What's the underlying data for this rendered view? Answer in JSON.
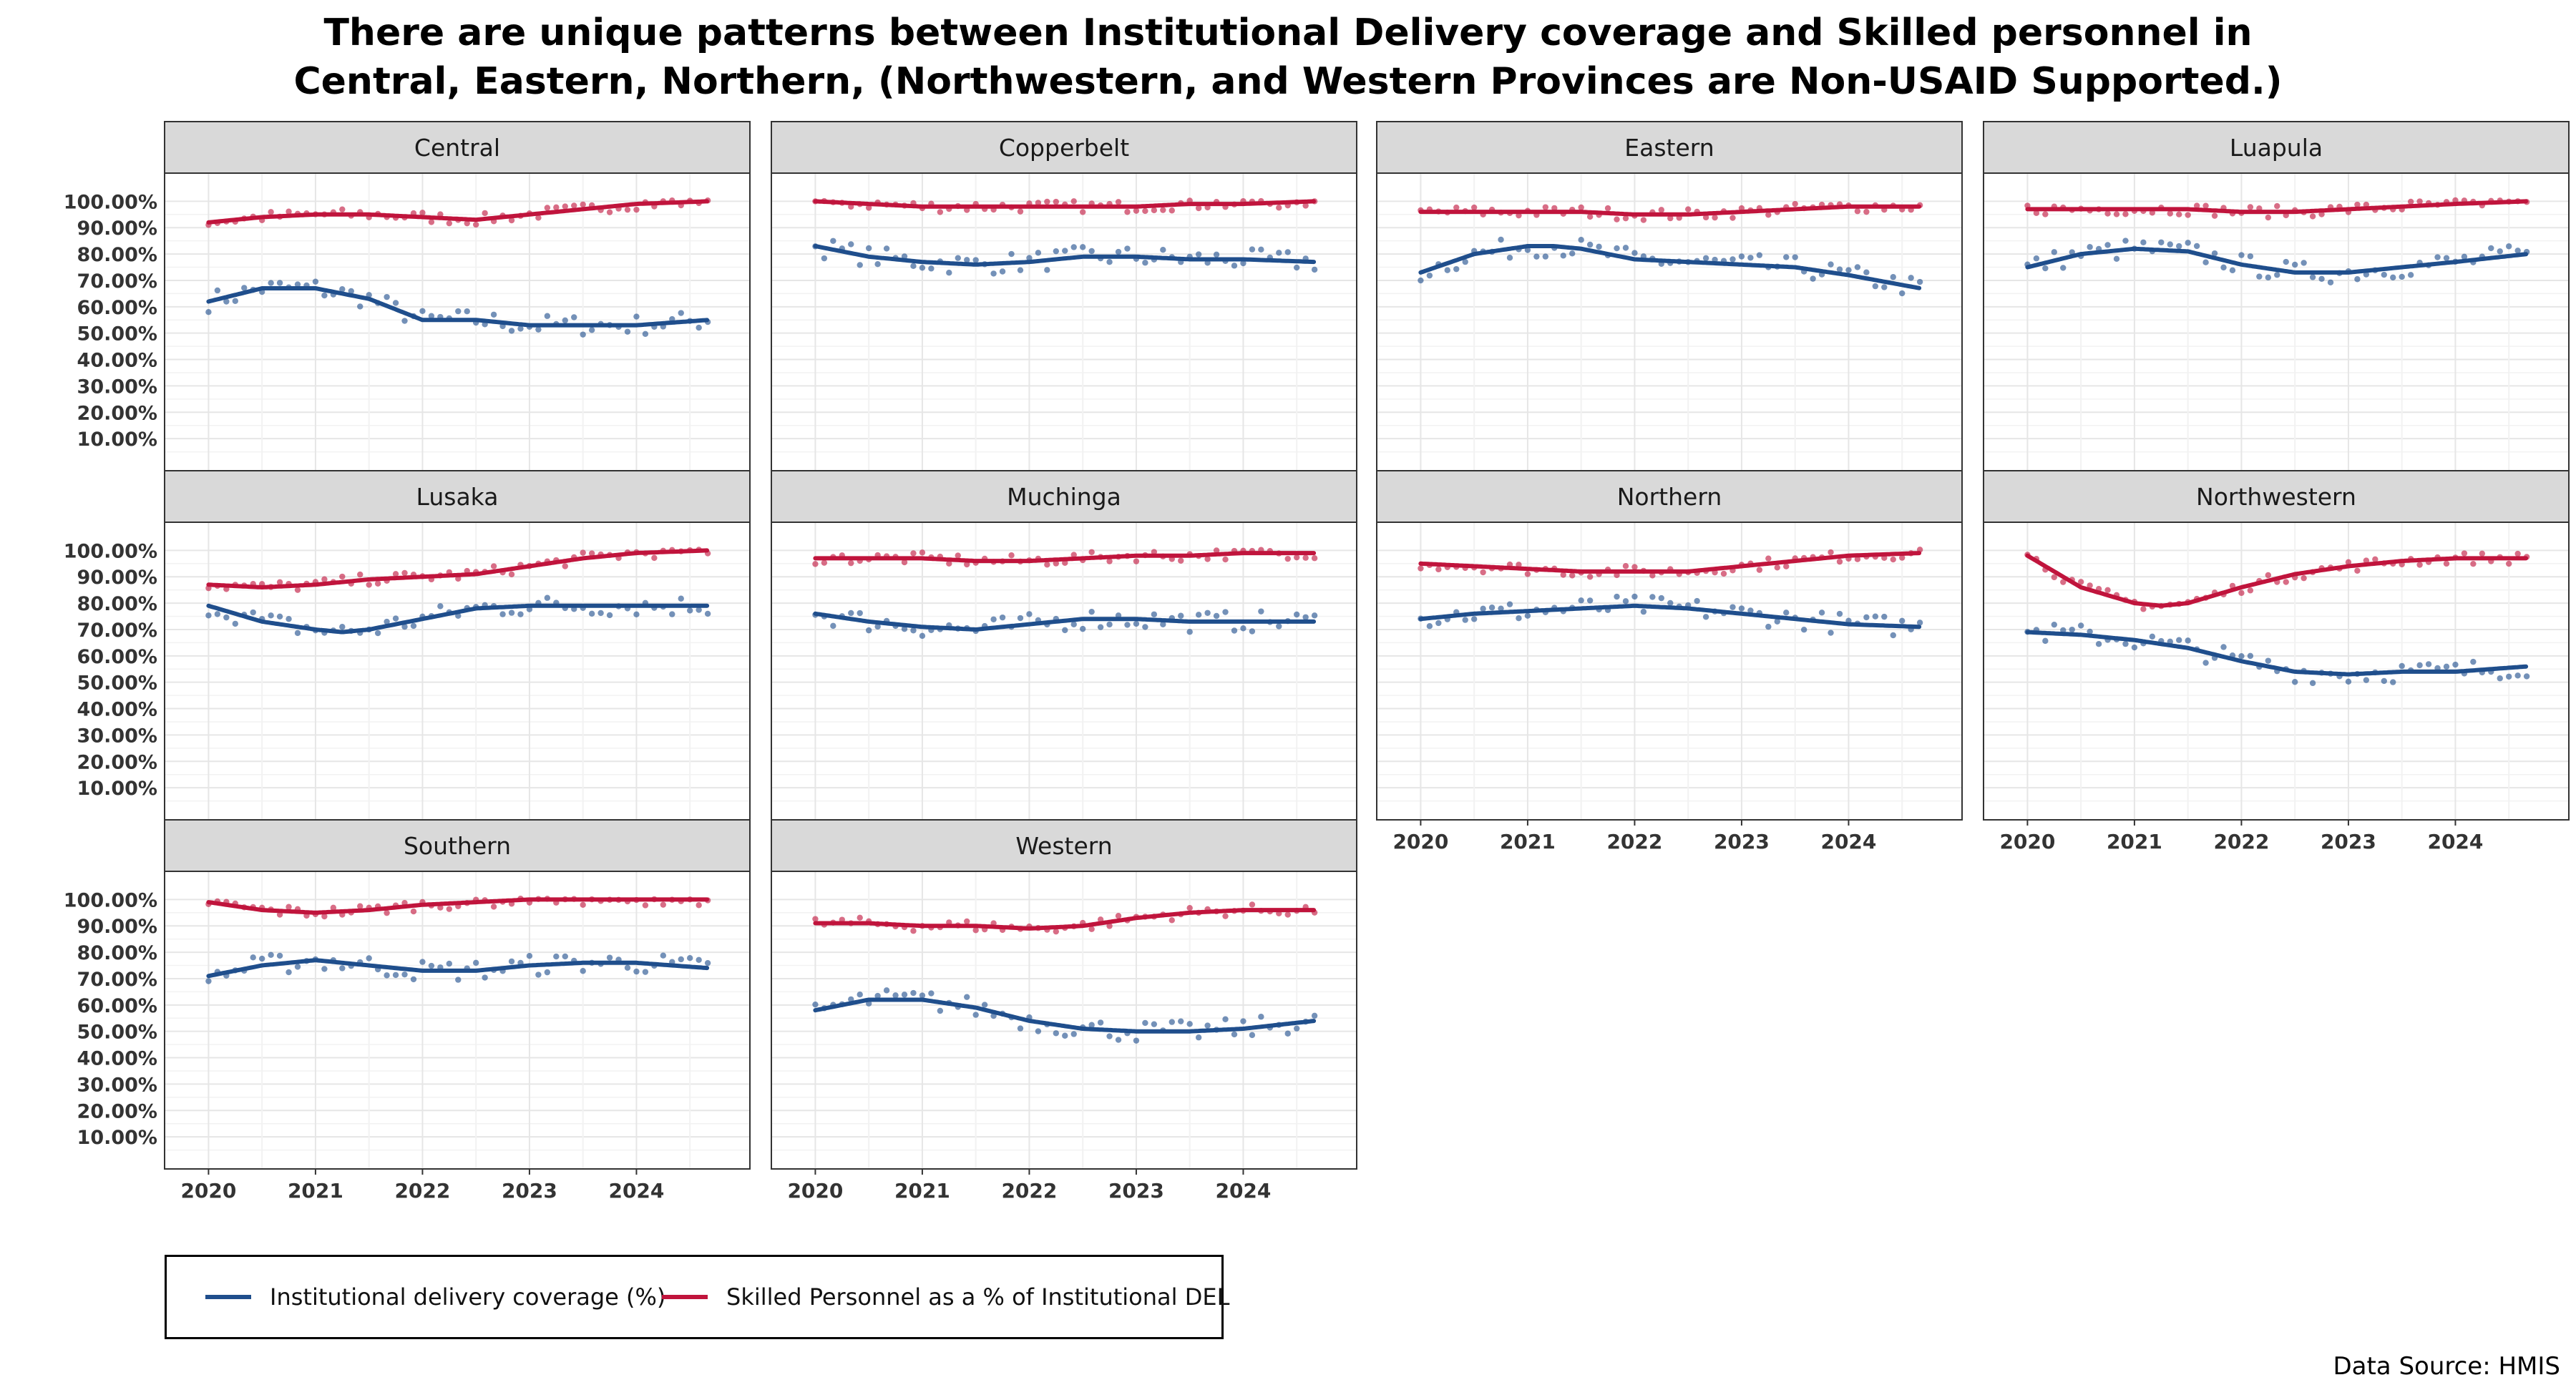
{
  "title_lines": [
    "There are unique patterns between Institutional Delivery coverage and Skilled personnel in",
    "Central, Eastern, Northern, (Northwestern, and Western Provinces are Non-USAID Supported.)"
  ],
  "source": "Data Source: HMIS",
  "colors": {
    "coverage": "#1f4e8c",
    "skilled": "#c0143c"
  },
  "legend": [
    {
      "label": "Institutional delivery coverage (%)",
      "series": "coverage"
    },
    {
      "label": "Skilled  Personnel as a % of Institutional DEL",
      "series": "skilled"
    }
  ],
  "chart_data": {
    "type": "scatter",
    "y_ticks": [
      "10.00%",
      "20.00%",
      "30.00%",
      "40.00%",
      "50.00%",
      "60.00%",
      "70.00%",
      "80.00%",
      "90.00%",
      "100.00%"
    ],
    "x_ticks": [
      "2020",
      "2021",
      "2022",
      "2023",
      "2024"
    ],
    "x_range": [
      2019.83,
      2024.9
    ],
    "y_range": [
      0,
      102
    ],
    "grid": true,
    "legend_position": "bottom",
    "panels": [
      {
        "name": "Central",
        "coverage": [
          [
            2020.0,
            62
          ],
          [
            2020.5,
            67
          ],
          [
            2021.0,
            67
          ],
          [
            2021.5,
            63
          ],
          [
            2022.0,
            55
          ],
          [
            2022.5,
            55
          ],
          [
            2023.0,
            53
          ],
          [
            2023.5,
            53
          ],
          [
            2024.0,
            53
          ],
          [
            2024.67,
            55
          ]
        ],
        "skilled": [
          [
            2020.0,
            92
          ],
          [
            2020.5,
            94
          ],
          [
            2021.0,
            95
          ],
          [
            2021.5,
            95
          ],
          [
            2022.0,
            94
          ],
          [
            2022.5,
            93
          ],
          [
            2023.0,
            95
          ],
          [
            2023.5,
            97
          ],
          [
            2024.0,
            99
          ],
          [
            2024.67,
            100
          ]
        ]
      },
      {
        "name": "Copperbelt",
        "coverage": [
          [
            2020.0,
            83
          ],
          [
            2020.5,
            79
          ],
          [
            2021.0,
            77
          ],
          [
            2021.5,
            76
          ],
          [
            2022.0,
            77
          ],
          [
            2022.5,
            79
          ],
          [
            2023.0,
            79
          ],
          [
            2023.5,
            78
          ],
          [
            2024.0,
            78
          ],
          [
            2024.67,
            77
          ]
        ],
        "skilled": [
          [
            2020.0,
            100
          ],
          [
            2020.5,
            99
          ],
          [
            2021.0,
            98
          ],
          [
            2021.5,
            98
          ],
          [
            2022.0,
            98
          ],
          [
            2022.5,
            98
          ],
          [
            2023.0,
            98
          ],
          [
            2023.5,
            99
          ],
          [
            2024.0,
            99
          ],
          [
            2024.67,
            100
          ]
        ]
      },
      {
        "name": "Eastern",
        "coverage": [
          [
            2020.0,
            73
          ],
          [
            2020.5,
            80
          ],
          [
            2021.0,
            83
          ],
          [
            2021.25,
            83
          ],
          [
            2021.5,
            82
          ],
          [
            2022.0,
            78
          ],
          [
            2022.5,
            77
          ],
          [
            2023.0,
            76
          ],
          [
            2023.5,
            75
          ],
          [
            2024.0,
            72
          ],
          [
            2024.67,
            67
          ]
        ],
        "skilled": [
          [
            2020.0,
            96
          ],
          [
            2020.5,
            96
          ],
          [
            2021.0,
            96
          ],
          [
            2021.5,
            96
          ],
          [
            2022.0,
            95
          ],
          [
            2022.5,
            95
          ],
          [
            2023.0,
            96
          ],
          [
            2023.5,
            97
          ],
          [
            2024.0,
            98
          ],
          [
            2024.67,
            98
          ]
        ]
      },
      {
        "name": "Luapula",
        "coverage": [
          [
            2020.0,
            75
          ],
          [
            2020.5,
            80
          ],
          [
            2021.0,
            82
          ],
          [
            2021.5,
            81
          ],
          [
            2022.0,
            76
          ],
          [
            2022.5,
            73
          ],
          [
            2023.0,
            73
          ],
          [
            2023.5,
            75
          ],
          [
            2024.0,
            77
          ],
          [
            2024.67,
            80
          ]
        ],
        "skilled": [
          [
            2020.0,
            97
          ],
          [
            2020.5,
            97
          ],
          [
            2021.0,
            97
          ],
          [
            2021.5,
            97
          ],
          [
            2022.0,
            96
          ],
          [
            2022.5,
            96
          ],
          [
            2023.0,
            97
          ],
          [
            2023.5,
            98
          ],
          [
            2024.0,
            99
          ],
          [
            2024.67,
            100
          ]
        ]
      },
      {
        "name": "Lusaka",
        "coverage": [
          [
            2020.0,
            79
          ],
          [
            2020.5,
            73
          ],
          [
            2021.0,
            70
          ],
          [
            2021.25,
            69
          ],
          [
            2021.5,
            70
          ],
          [
            2022.0,
            74
          ],
          [
            2022.5,
            78
          ],
          [
            2023.0,
            79
          ],
          [
            2023.5,
            79
          ],
          [
            2024.0,
            79
          ],
          [
            2024.67,
            79
          ]
        ],
        "skilled": [
          [
            2020.0,
            87
          ],
          [
            2020.5,
            86
          ],
          [
            2021.0,
            87
          ],
          [
            2021.5,
            89
          ],
          [
            2022.0,
            90
          ],
          [
            2022.5,
            91
          ],
          [
            2023.0,
            94
          ],
          [
            2023.5,
            97
          ],
          [
            2024.0,
            99
          ],
          [
            2024.67,
            100
          ]
        ]
      },
      {
        "name": "Muchinga",
        "coverage": [
          [
            2020.0,
            76
          ],
          [
            2020.5,
            73
          ],
          [
            2021.0,
            71
          ],
          [
            2021.5,
            70
          ],
          [
            2022.0,
            72
          ],
          [
            2022.5,
            74
          ],
          [
            2023.0,
            74
          ],
          [
            2023.5,
            73
          ],
          [
            2024.0,
            73
          ],
          [
            2024.67,
            73
          ]
        ],
        "skilled": [
          [
            2020.0,
            97
          ],
          [
            2020.5,
            97
          ],
          [
            2021.0,
            97
          ],
          [
            2021.5,
            96
          ],
          [
            2022.0,
            96
          ],
          [
            2022.5,
            97
          ],
          [
            2023.0,
            98
          ],
          [
            2023.5,
            98
          ],
          [
            2024.0,
            99
          ],
          [
            2024.67,
            99
          ]
        ]
      },
      {
        "name": "Northern",
        "coverage": [
          [
            2020.0,
            74
          ],
          [
            2020.5,
            76
          ],
          [
            2021.0,
            77
          ],
          [
            2021.5,
            78
          ],
          [
            2022.0,
            79
          ],
          [
            2022.5,
            78
          ],
          [
            2023.0,
            76
          ],
          [
            2023.5,
            74
          ],
          [
            2024.0,
            72
          ],
          [
            2024.67,
            71
          ]
        ],
        "skilled": [
          [
            2020.0,
            95
          ],
          [
            2020.5,
            94
          ],
          [
            2021.0,
            93
          ],
          [
            2021.5,
            92
          ],
          [
            2022.0,
            92
          ],
          [
            2022.5,
            92
          ],
          [
            2023.0,
            94
          ],
          [
            2023.5,
            96
          ],
          [
            2024.0,
            98
          ],
          [
            2024.67,
            99
          ]
        ]
      },
      {
        "name": "Northwestern",
        "coverage": [
          [
            2020.0,
            69
          ],
          [
            2020.5,
            68
          ],
          [
            2021.0,
            66
          ],
          [
            2021.5,
            63
          ],
          [
            2022.0,
            58
          ],
          [
            2022.5,
            54
          ],
          [
            2023.0,
            53
          ],
          [
            2023.5,
            54
          ],
          [
            2024.0,
            54
          ],
          [
            2024.67,
            56
          ]
        ],
        "skilled": [
          [
            2020.0,
            98
          ],
          [
            2020.5,
            86
          ],
          [
            2021.0,
            80
          ],
          [
            2021.25,
            79
          ],
          [
            2021.5,
            80
          ],
          [
            2022.0,
            86
          ],
          [
            2022.5,
            91
          ],
          [
            2023.0,
            94
          ],
          [
            2023.5,
            96
          ],
          [
            2024.0,
            97
          ],
          [
            2024.67,
            97
          ]
        ]
      },
      {
        "name": "Southern",
        "coverage": [
          [
            2020.0,
            71
          ],
          [
            2020.5,
            75
          ],
          [
            2021.0,
            77
          ],
          [
            2021.5,
            75
          ],
          [
            2022.0,
            73
          ],
          [
            2022.5,
            73
          ],
          [
            2023.0,
            75
          ],
          [
            2023.5,
            76
          ],
          [
            2024.0,
            76
          ],
          [
            2024.67,
            74
          ]
        ],
        "skilled": [
          [
            2020.0,
            99
          ],
          [
            2020.5,
            96
          ],
          [
            2021.0,
            95
          ],
          [
            2021.5,
            96
          ],
          [
            2022.0,
            98
          ],
          [
            2022.5,
            99
          ],
          [
            2023.0,
            100
          ],
          [
            2023.5,
            100
          ],
          [
            2024.0,
            100
          ],
          [
            2024.67,
            100
          ]
        ]
      },
      {
        "name": "Western",
        "coverage": [
          [
            2020.0,
            58
          ],
          [
            2020.5,
            62
          ],
          [
            2021.0,
            62
          ],
          [
            2021.5,
            59
          ],
          [
            2022.0,
            54
          ],
          [
            2022.5,
            51
          ],
          [
            2023.0,
            50
          ],
          [
            2023.5,
            50
          ],
          [
            2024.0,
            51
          ],
          [
            2024.67,
            54
          ]
        ],
        "skilled": [
          [
            2020.0,
            91
          ],
          [
            2020.5,
            91
          ],
          [
            2021.0,
            90
          ],
          [
            2021.5,
            90
          ],
          [
            2022.0,
            89
          ],
          [
            2022.5,
            90
          ],
          [
            2023.0,
            93
          ],
          [
            2023.5,
            95
          ],
          [
            2024.0,
            96
          ],
          [
            2024.67,
            96
          ]
        ]
      }
    ]
  }
}
